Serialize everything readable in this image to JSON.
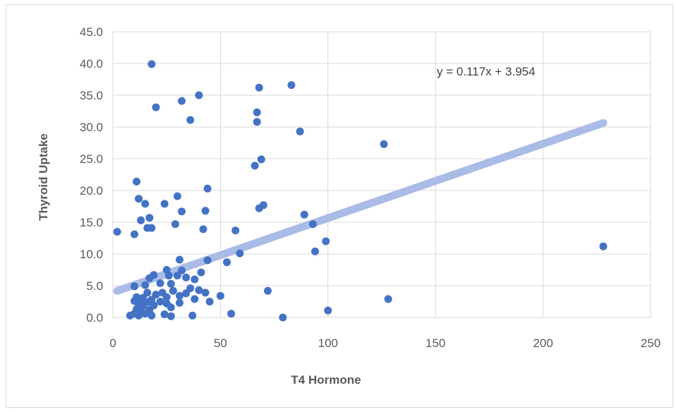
{
  "chart_data": {
    "type": "scatter",
    "title": "",
    "xlabel": "T4 Hormone",
    "ylabel": "Thyroid Uptake",
    "xlim": [
      0,
      250
    ],
    "ylim": [
      0,
      45
    ],
    "xticks": [
      "0",
      "50",
      "100",
      "150",
      "200",
      "250"
    ],
    "yticks": [
      "0.0",
      "5.0",
      "10.0",
      "15.0",
      "20.0",
      "25.0",
      "30.0",
      "35.0",
      "40.0",
      "45.0"
    ],
    "grid": true,
    "legend": "none",
    "series": [
      {
        "color": "#4472c4",
        "points": [
          [
            18,
            39.9
          ],
          [
            20,
            33.1
          ],
          [
            32,
            34.1
          ],
          [
            40,
            35.0
          ],
          [
            36,
            31.1
          ],
          [
            68,
            36.2
          ],
          [
            83,
            36.6
          ],
          [
            67,
            32.3
          ],
          [
            67,
            30.8
          ],
          [
            87,
            29.3
          ],
          [
            126,
            27.3
          ],
          [
            69,
            24.9
          ],
          [
            66,
            23.9
          ],
          [
            11,
            21.4
          ],
          [
            44,
            20.3
          ],
          [
            30,
            19.1
          ],
          [
            12,
            18.7
          ],
          [
            15,
            17.9
          ],
          [
            24,
            17.9
          ],
          [
            70,
            17.7
          ],
          [
            68,
            17.2
          ],
          [
            32,
            16.7
          ],
          [
            43,
            16.8
          ],
          [
            89,
            16.2
          ],
          [
            17,
            15.7
          ],
          [
            13,
            15.3
          ],
          [
            29,
            14.7
          ],
          [
            93,
            14.7
          ],
          [
            16,
            14.1
          ],
          [
            18,
            14.1
          ],
          [
            42,
            13.9
          ],
          [
            57,
            13.7
          ],
          [
            2,
            13.5
          ],
          [
            10,
            13.1
          ],
          [
            99,
            12.0
          ],
          [
            94,
            10.4
          ],
          [
            59,
            10.1
          ],
          [
            228,
            11.2
          ],
          [
            31,
            9.1
          ],
          [
            44,
            9.0
          ],
          [
            53,
            8.7
          ],
          [
            25,
            7.5
          ],
          [
            32,
            7.4
          ],
          [
            41,
            7.1
          ],
          [
            19,
            6.7
          ],
          [
            26,
            6.6
          ],
          [
            30,
            6.6
          ],
          [
            17,
            6.2
          ],
          [
            34,
            6.3
          ],
          [
            38,
            6.0
          ],
          [
            22,
            5.4
          ],
          [
            27,
            5.3
          ],
          [
            15,
            5.1
          ],
          [
            10,
            4.9
          ],
          [
            36,
            4.6
          ],
          [
            40,
            4.3
          ],
          [
            28,
            4.2
          ],
          [
            72,
            4.2
          ],
          [
            16,
            3.9
          ],
          [
            23,
            3.9
          ],
          [
            34,
            3.8
          ],
          [
            43,
            3.9
          ],
          [
            20,
            3.6
          ],
          [
            50,
            3.4
          ],
          [
            11,
            3.2
          ],
          [
            14,
            3.1
          ],
          [
            25,
            3.2
          ],
          [
            31,
            3.4
          ],
          [
            13,
            2.9
          ],
          [
            18,
            2.8
          ],
          [
            38,
            2.9
          ],
          [
            128,
            2.9
          ],
          [
            10,
            2.6
          ],
          [
            22,
            2.5
          ],
          [
            45,
            2.5
          ],
          [
            16,
            2.4
          ],
          [
            25,
            2.2
          ],
          [
            31,
            2.3
          ],
          [
            12,
            2.0
          ],
          [
            14,
            1.8
          ],
          [
            19,
            1.9
          ],
          [
            27,
            1.6
          ],
          [
            11,
            1.3
          ],
          [
            17,
            1.2
          ],
          [
            13,
            0.9
          ],
          [
            100,
            1.1
          ],
          [
            10,
            0.6
          ],
          [
            15,
            0.6
          ],
          [
            24,
            0.5
          ],
          [
            55,
            0.6
          ],
          [
            8,
            0.3
          ],
          [
            12,
            0.3
          ],
          [
            18,
            0.3
          ],
          [
            27,
            0.2
          ],
          [
            37,
            0.3
          ],
          [
            79,
            0.0
          ]
        ]
      }
    ],
    "trendline": {
      "slope": 0.117,
      "intercept": 3.954,
      "x_range": [
        2,
        228
      ],
      "color": "#aabbe6",
      "label": "y = 0.117x + 3.954"
    }
  }
}
